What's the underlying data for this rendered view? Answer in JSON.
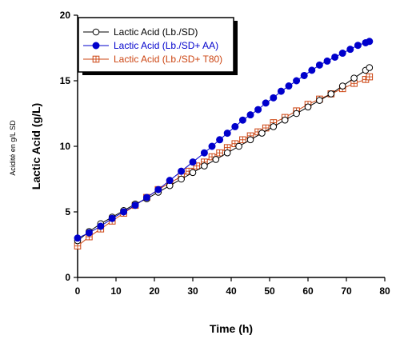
{
  "chart_data": {
    "type": "line",
    "xlabel": "Time (h)",
    "ylabel": "Lactic Acid (g/L)",
    "side_label": "Acidité en g/L SD",
    "xlim": [
      0,
      80
    ],
    "ylim": [
      0,
      20
    ],
    "x_ticks": [
      0,
      10,
      20,
      30,
      40,
      50,
      60,
      70,
      80
    ],
    "y_ticks": [
      0,
      5,
      10,
      15,
      20
    ],
    "grid": false,
    "legend_position": "top-left",
    "series": [
      {
        "name": "Lactic Acid (Lb./SD)",
        "color": "#000000",
        "marker": "open-circle",
        "x": [
          0,
          3,
          6,
          9,
          12,
          15,
          18,
          21,
          24,
          27,
          30,
          33,
          36,
          39,
          42,
          45,
          48,
          51,
          54,
          57,
          60,
          63,
          66,
          69,
          72,
          75,
          76
        ],
        "y": [
          2.8,
          3.5,
          4.1,
          4.6,
          5.1,
          5.6,
          6.0,
          6.5,
          7.0,
          7.5,
          8.0,
          8.5,
          9.0,
          9.5,
          10.0,
          10.5,
          11.0,
          11.5,
          12.0,
          12.5,
          13.0,
          13.5,
          14.0,
          14.6,
          15.2,
          15.8,
          16.0
        ]
      },
      {
        "name": "Lactic Acid (Lb./SD+ AA)",
        "color": "#0000cc",
        "marker": "filled-circle",
        "x": [
          0,
          3,
          6,
          9,
          12,
          15,
          18,
          21,
          24,
          27,
          30,
          33,
          35,
          37,
          39,
          41,
          43,
          45,
          47,
          49,
          51,
          53,
          55,
          57,
          59,
          61,
          63,
          65,
          67,
          69,
          71,
          73,
          75,
          76
        ],
        "y": [
          3.0,
          3.4,
          3.9,
          4.5,
          5.0,
          5.5,
          6.1,
          6.7,
          7.4,
          8.1,
          8.8,
          9.5,
          10.0,
          10.5,
          11.0,
          11.5,
          12.0,
          12.4,
          12.8,
          13.3,
          13.7,
          14.2,
          14.6,
          15.0,
          15.4,
          15.8,
          16.2,
          16.5,
          16.8,
          17.1,
          17.4,
          17.7,
          17.9,
          18.0
        ]
      },
      {
        "name": "Lactic Acid (Lb./SD+ T80)",
        "color": "#cc4411",
        "marker": "open-square-cross",
        "x": [
          0,
          3,
          6,
          9,
          12,
          15,
          18,
          21,
          24,
          27,
          29,
          31,
          33,
          35,
          37,
          39,
          41,
          43,
          45,
          47,
          49,
          51,
          54,
          57,
          60,
          63,
          66,
          69,
          72,
          75,
          76
        ],
        "y": [
          2.4,
          3.1,
          3.7,
          4.3,
          4.9,
          5.5,
          6.1,
          6.7,
          7.2,
          7.7,
          8.1,
          8.5,
          8.8,
          9.2,
          9.5,
          9.9,
          10.2,
          10.5,
          10.8,
          11.1,
          11.4,
          11.8,
          12.2,
          12.7,
          13.2,
          13.6,
          14.0,
          14.4,
          14.8,
          15.1,
          15.3
        ]
      }
    ]
  }
}
